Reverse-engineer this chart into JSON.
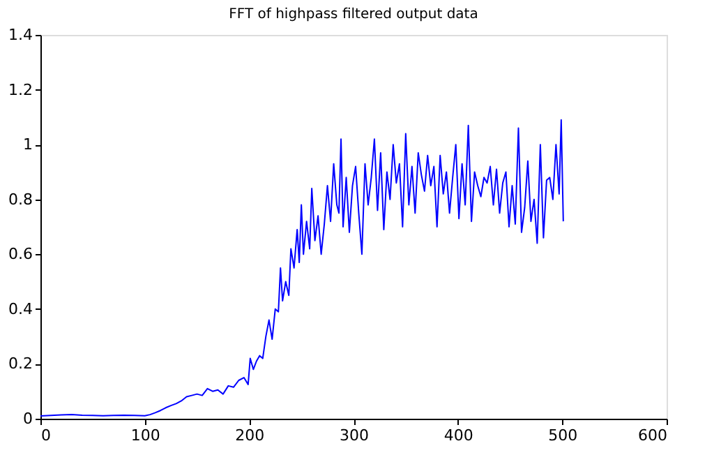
{
  "chart_data": {
    "type": "line",
    "title": "FFT of highpass filtered output data",
    "x": [
      0,
      10,
      20,
      30,
      40,
      50,
      60,
      70,
      80,
      90,
      100,
      105,
      110,
      115,
      120,
      125,
      130,
      135,
      140,
      145,
      150,
      155,
      160,
      165,
      170,
      175,
      180,
      185,
      190,
      195,
      199,
      201,
      204,
      207,
      210,
      213,
      216,
      219,
      222,
      225,
      228,
      230,
      232,
      235,
      238,
      240,
      243,
      246,
      248,
      250,
      252,
      255,
      258,
      260,
      263,
      266,
      269,
      272,
      275,
      278,
      281,
      284,
      286,
      288,
      290,
      293,
      296,
      299,
      302,
      305,
      308,
      311,
      314,
      317,
      320,
      323,
      326,
      329,
      332,
      335,
      338,
      341,
      344,
      347,
      350,
      353,
      356,
      359,
      362,
      365,
      368,
      371,
      374,
      377,
      380,
      383,
      386,
      389,
      392,
      395,
      398,
      401,
      404,
      407,
      410,
      413,
      416,
      419,
      422,
      425,
      428,
      431,
      434,
      437,
      440,
      443,
      446,
      449,
      452,
      455,
      458,
      461,
      464,
      467,
      470,
      473,
      476,
      479,
      482,
      485,
      488,
      491,
      494,
      497,
      499,
      501
    ],
    "series": [
      {
        "color": "#0000ff",
        "values": [
          0.01,
          0.012,
          0.014,
          0.015,
          0.013,
          0.012,
          0.011,
          0.012,
          0.013,
          0.012,
          0.011,
          0.015,
          0.022,
          0.03,
          0.04,
          0.048,
          0.055,
          0.065,
          0.08,
          0.085,
          0.09,
          0.085,
          0.11,
          0.1,
          0.105,
          0.09,
          0.12,
          0.115,
          0.14,
          0.15,
          0.125,
          0.22,
          0.18,
          0.21,
          0.23,
          0.22,
          0.3,
          0.36,
          0.29,
          0.4,
          0.39,
          0.55,
          0.43,
          0.5,
          0.45,
          0.62,
          0.55,
          0.69,
          0.57,
          0.78,
          0.6,
          0.72,
          0.62,
          0.84,
          0.65,
          0.74,
          0.6,
          0.71,
          0.85,
          0.72,
          0.93,
          0.78,
          0.75,
          1.02,
          0.7,
          0.88,
          0.68,
          0.85,
          0.92,
          0.75,
          0.6,
          0.93,
          0.78,
          0.88,
          1.02,
          0.76,
          0.97,
          0.69,
          0.9,
          0.8,
          1.0,
          0.86,
          0.93,
          0.7,
          1.04,
          0.78,
          0.92,
          0.75,
          0.97,
          0.89,
          0.83,
          0.96,
          0.85,
          0.92,
          0.7,
          0.96,
          0.82,
          0.9,
          0.75,
          0.88,
          1.0,
          0.73,
          0.93,
          0.78,
          1.07,
          0.72,
          0.9,
          0.85,
          0.81,
          0.88,
          0.86,
          0.92,
          0.78,
          0.91,
          0.75,
          0.86,
          0.9,
          0.7,
          0.85,
          0.71,
          1.06,
          0.68,
          0.77,
          0.94,
          0.72,
          0.8,
          0.64,
          1.0,
          0.66,
          0.87,
          0.88,
          0.8,
          1.0,
          0.82,
          1.09,
          0.72
        ]
      }
    ],
    "xlim": [
      0,
      600
    ],
    "ylim": [
      0,
      1.4
    ],
    "xticks": [
      0,
      100,
      200,
      300,
      400,
      500,
      600
    ],
    "yticks": [
      0,
      0.2,
      0.4,
      0.6,
      0.8,
      1,
      1.2,
      1.4
    ],
    "grid": false,
    "legend": false,
    "marker": "none",
    "line_style": "solid"
  }
}
